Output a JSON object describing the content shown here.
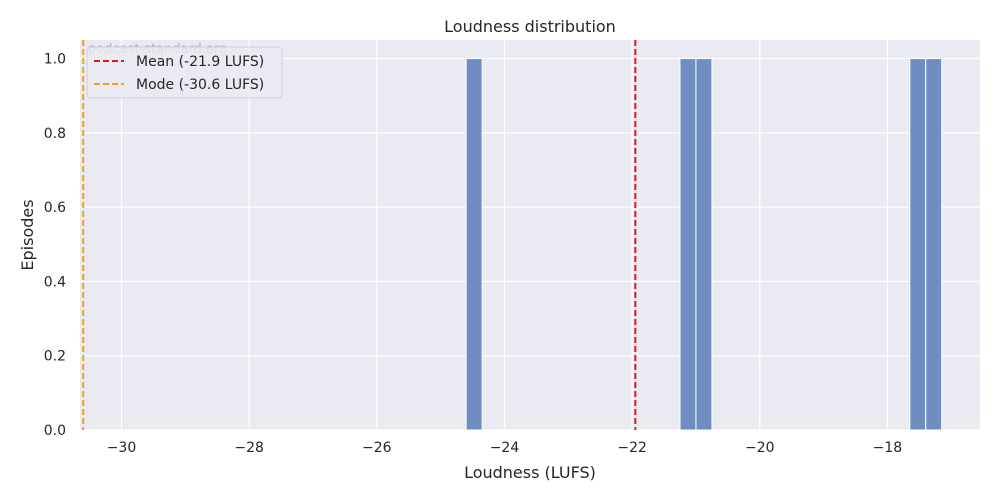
{
  "chart_data": {
    "type": "bar",
    "title": "Loudness distribution",
    "xlabel": "Loudness (LUFS)",
    "ylabel": "Episodes",
    "watermark": "podcast-standard.org",
    "xlim": [
      -30.65,
      -16.55
    ],
    "ylim": [
      0,
      1.05
    ],
    "xticks": [
      -30,
      -28,
      -26,
      -24,
      -22,
      -20,
      -18
    ],
    "xtick_labels": [
      "−30",
      "−28",
      "−26",
      "−24",
      "−22",
      "−20",
      "−18"
    ],
    "yticks": [
      0.0,
      0.2,
      0.4,
      0.6,
      0.8,
      1.0
    ],
    "ytick_labels": [
      "0.0",
      "0.2",
      "0.4",
      "0.6",
      "0.8",
      "1.0"
    ],
    "bars": [
      {
        "x0": -24.6,
        "x1": -24.35,
        "value": 1
      },
      {
        "x0": -21.25,
        "x1": -21.0,
        "value": 1
      },
      {
        "x0": -21.0,
        "x1": -20.75,
        "value": 1
      },
      {
        "x0": -17.65,
        "x1": -17.4,
        "value": 1
      },
      {
        "x0": -17.4,
        "x1": -17.15,
        "value": 1
      }
    ],
    "lines": [
      {
        "label": "Mean (-21.9 LUFS)",
        "x": -21.95,
        "color": "#e8141b"
      },
      {
        "label": "Mode (-30.6 LUFS)",
        "x": -30.6,
        "color": "#f5a01e"
      }
    ],
    "grid": true,
    "legend": "top-left",
    "colors": {
      "bar": "#6f8dc0",
      "plot_bg": "#eaeaf2",
      "grid": "#ffffff"
    }
  }
}
